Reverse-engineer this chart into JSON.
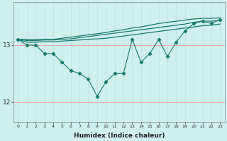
{
  "xlabel": "Humidex (Indice chaleur)",
  "background_color": "#cff0ec",
  "line_color": "#1a7a6e",
  "grid_color_v": "#c0e4e0",
  "grid_color_h": "#f0a0a0",
  "x_values": [
    0,
    1,
    2,
    3,
    4,
    5,
    6,
    7,
    8,
    9,
    10,
    11,
    12,
    13,
    14,
    15,
    16,
    17,
    18,
    19,
    20,
    21,
    22,
    23
  ],
  "y_zigzag": [
    13.1,
    13.0,
    13.0,
    12.85,
    12.85,
    12.7,
    12.55,
    12.5,
    12.4,
    12.1,
    12.35,
    12.5,
    12.5,
    13.1,
    12.7,
    12.85,
    13.1,
    12.8,
    13.05,
    13.25,
    13.38,
    13.42,
    13.38,
    13.45
  ],
  "y_line1": [
    13.1,
    13.1,
    13.1,
    13.1,
    13.1,
    13.12,
    13.14,
    13.16,
    13.18,
    13.2,
    13.22,
    13.25,
    13.27,
    13.3,
    13.32,
    13.35,
    13.38,
    13.4,
    13.42,
    13.44,
    13.46,
    13.47,
    13.47,
    13.48
  ],
  "y_line2": [
    13.1,
    13.08,
    13.08,
    13.09,
    13.09,
    13.1,
    13.11,
    13.13,
    13.15,
    13.17,
    13.19,
    13.21,
    13.23,
    13.25,
    13.27,
    13.29,
    13.31,
    13.33,
    13.35,
    13.37,
    13.4,
    13.42,
    13.42,
    13.44
  ],
  "y_line3": [
    13.1,
    13.05,
    13.05,
    13.06,
    13.06,
    13.07,
    13.08,
    13.09,
    13.1,
    13.11,
    13.12,
    13.14,
    13.16,
    13.18,
    13.2,
    13.22,
    13.24,
    13.26,
    13.28,
    13.3,
    13.32,
    13.34,
    13.35,
    13.37
  ],
  "ylim": [
    11.65,
    13.75
  ],
  "xlim": [
    -0.5,
    23.5
  ],
  "yticks": [
    12.0,
    13.0
  ],
  "xticks": [
    0,
    1,
    2,
    3,
    4,
    5,
    6,
    7,
    8,
    9,
    10,
    11,
    12,
    13,
    14,
    15,
    16,
    17,
    18,
    19,
    20,
    21,
    22,
    23
  ]
}
